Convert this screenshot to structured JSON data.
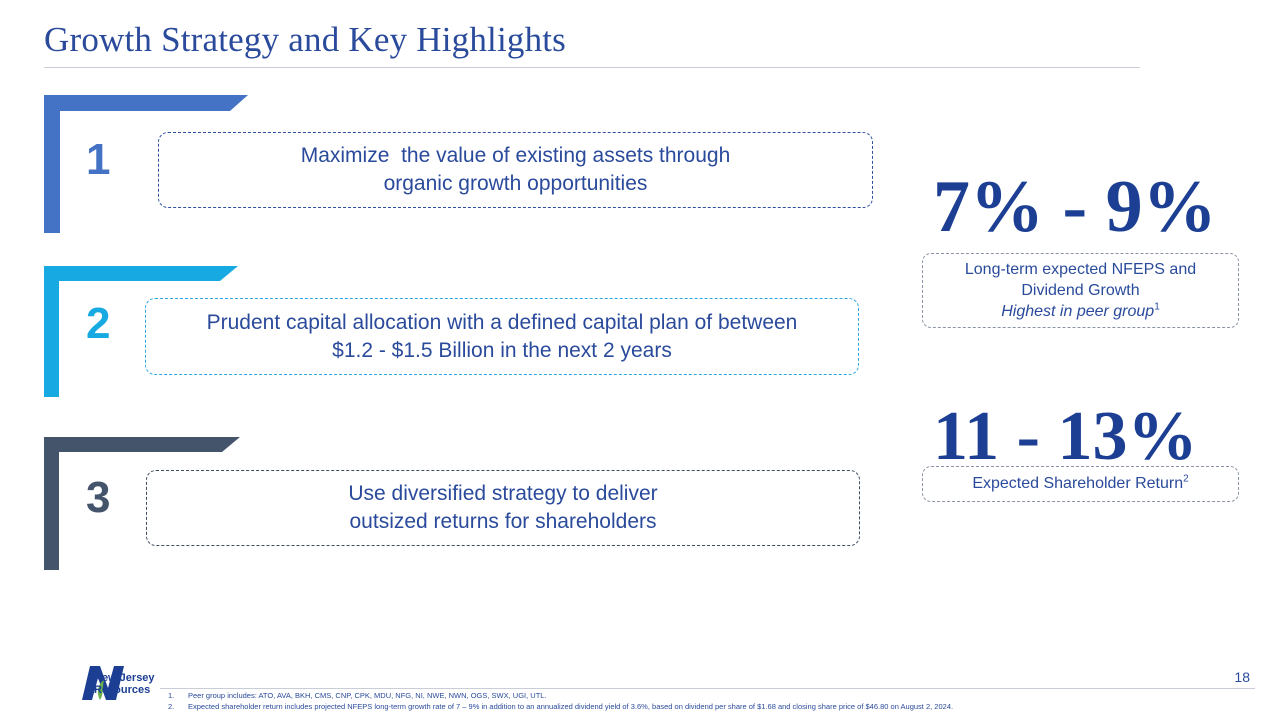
{
  "title": "Growth Strategy and Key Highlights",
  "colors": {
    "blue": "#4472c4",
    "cyan": "#17a9e1",
    "slate": "#44546a",
    "navy": "#1c3f94"
  },
  "items": [
    {
      "number": "1",
      "line1": "Maximize  the value of existing assets through",
      "line2": "organic growth opportunities"
    },
    {
      "number": "2",
      "line1": "Prudent capital allocation with a defined capital plan of between",
      "line2": "$1.2 - $1.5 Billion in the next 2 years"
    },
    {
      "number": "3",
      "line1": "Use diversified strategy to deliver",
      "line2": "outsized returns for shareholders"
    }
  ],
  "highlights": [
    {
      "value": "7% - 9%",
      "line1": "Long-term expected NFEPS and",
      "line2": "Dividend Growth",
      "line3": "Highest in peer group",
      "footnote": "1"
    },
    {
      "value": "11 - 13%",
      "line1": "Expected Shareholder Return",
      "footnote": "2"
    }
  ],
  "page_number": "18",
  "footnotes": [
    {
      "num": "1.",
      "text": "Peer group includes: ATO, AVA, BKH, CMS, CNP, CPK, MDU, NFG, NI, NWE, NWN, OGS, SWX, UGI, UTL."
    },
    {
      "num": "2.",
      "text": "Expected shareholder return includes projected NFEPS long-term growth rate of 7 – 9% in addition to an annualized dividend yield of 3.6%, based on dividend per share of $1.68 and closing share price of $46.80 on August 2, 2024."
    }
  ],
  "logo": {
    "line1": "New Jersey",
    "line2": "Resources",
    "icon": "nj-resources-logo-icon"
  }
}
